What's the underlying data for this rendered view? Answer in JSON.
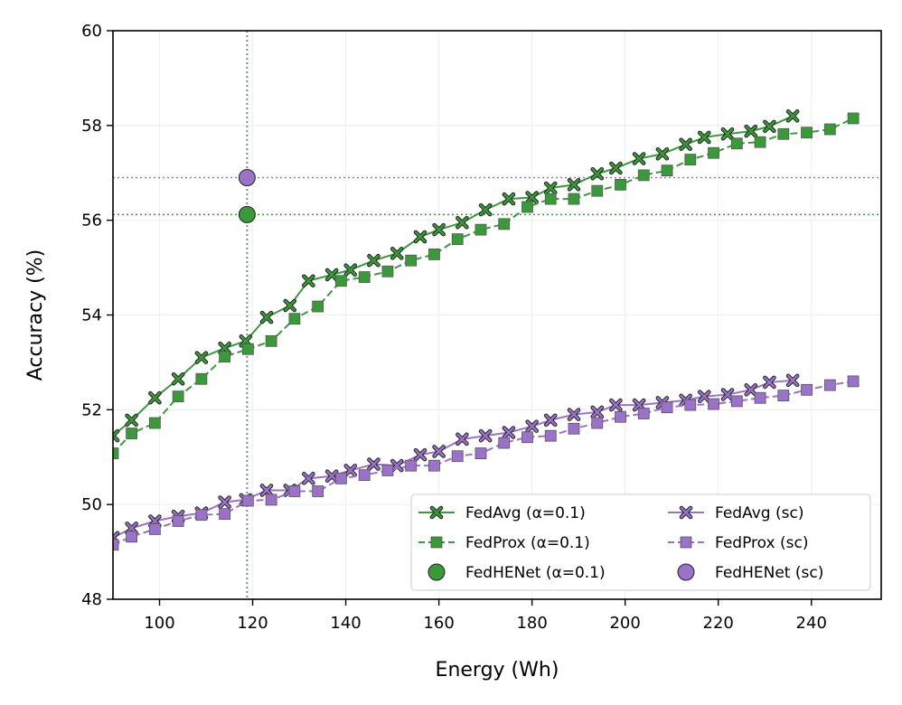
{
  "colors": {
    "green": "#3a9a3a",
    "green_fill": "#2e8b2e",
    "purple": "#9a72c8",
    "purple_fill": "#9a72c8",
    "grid": "#eeeeee",
    "ref_line": "#7a8a99"
  },
  "chart_data": {
    "type": "line",
    "title": "",
    "xlabel": "Energy (Wh)",
    "ylabel": "Accuracy (%)",
    "xlim": [
      90,
      255
    ],
    "ylim": [
      48,
      60
    ],
    "xticks": [
      100,
      120,
      140,
      160,
      180,
      200,
      220,
      240
    ],
    "yticks": [
      48,
      50,
      52,
      54,
      56,
      58,
      60
    ],
    "grid": true,
    "legend_position": "lower-right",
    "reference_lines": {
      "vertical_x": 118.8,
      "horizontal_y": [
        {
          "y": 56.9,
          "series": "FedHENet (sc)"
        },
        {
          "y": 56.12,
          "series": "FedHENet (α=0.1)"
        }
      ]
    },
    "series": [
      {
        "name": "FedAvg (α=0.1)",
        "color": "green",
        "marker": "x",
        "linestyle": "solid",
        "x": [
          90,
          94,
          99,
          104,
          109,
          114,
          118.5,
          123,
          128,
          132,
          137,
          141,
          146,
          151,
          156,
          160,
          165,
          170,
          175,
          180,
          184,
          189,
          194,
          198,
          203,
          208,
          213,
          217,
          222,
          227,
          231,
          236
        ],
        "y": [
          51.45,
          51.78,
          52.25,
          52.65,
          53.1,
          53.3,
          53.45,
          53.95,
          54.2,
          54.72,
          54.85,
          54.95,
          55.15,
          55.3,
          55.65,
          55.8,
          55.95,
          56.22,
          56.45,
          56.48,
          56.68,
          56.75,
          56.98,
          57.1,
          57.3,
          57.4,
          57.6,
          57.75,
          57.82,
          57.88,
          57.98,
          58.2
        ]
      },
      {
        "name": "FedProx (α=0.1)",
        "color": "green",
        "marker": "s",
        "linestyle": "dashed",
        "x": [
          90,
          94,
          99,
          104,
          109,
          114,
          119,
          124,
          129,
          134,
          139,
          144,
          149,
          154,
          159,
          164,
          169,
          174,
          179,
          184,
          189,
          194,
          199,
          204,
          209,
          214,
          219,
          224,
          229,
          234,
          239,
          244,
          249
        ],
        "y": [
          51.08,
          51.5,
          51.72,
          52.28,
          52.65,
          53.12,
          53.28,
          53.45,
          53.92,
          54.18,
          54.72,
          54.8,
          54.92,
          55.15,
          55.28,
          55.6,
          55.8,
          55.92,
          56.28,
          56.45,
          56.45,
          56.62,
          56.75,
          56.95,
          57.05,
          57.28,
          57.42,
          57.62,
          57.65,
          57.82,
          57.85,
          57.92,
          58.15
        ]
      },
      {
        "name": "FedAvg (sc)",
        "color": "purple",
        "marker": "x",
        "linestyle": "solid",
        "x": [
          90,
          94,
          99,
          104,
          109,
          114,
          118.5,
          123,
          128,
          132,
          137,
          141,
          146,
          151,
          156,
          160,
          165,
          170,
          175,
          180,
          184,
          189,
          194,
          198,
          203,
          208,
          213,
          217,
          222,
          227,
          231,
          236
        ],
        "y": [
          49.3,
          49.5,
          49.65,
          49.75,
          49.82,
          50.05,
          50.1,
          50.3,
          50.3,
          50.55,
          50.6,
          50.72,
          50.85,
          50.82,
          51.05,
          51.12,
          51.38,
          51.45,
          51.52,
          51.65,
          51.78,
          51.9,
          51.95,
          52.1,
          52.1,
          52.15,
          52.2,
          52.28,
          52.32,
          52.42,
          52.58,
          52.62
        ]
      },
      {
        "name": "FedProx (sc)",
        "color": "purple",
        "marker": "s",
        "linestyle": "dashed",
        "x": [
          90,
          94,
          99,
          104,
          109,
          114,
          119,
          124,
          129,
          134,
          139,
          144,
          149,
          154,
          159,
          164,
          169,
          174,
          179,
          184,
          189,
          194,
          199,
          204,
          209,
          214,
          219,
          224,
          229,
          234,
          239,
          244,
          249
        ],
        "y": [
          49.15,
          49.32,
          49.48,
          49.65,
          49.78,
          49.8,
          50.08,
          50.1,
          50.28,
          50.28,
          50.55,
          50.62,
          50.72,
          50.82,
          50.82,
          51.02,
          51.08,
          51.3,
          51.42,
          51.45,
          51.6,
          51.72,
          51.85,
          51.92,
          52.05,
          52.1,
          52.12,
          52.18,
          52.25,
          52.3,
          52.42,
          52.52,
          52.6
        ]
      },
      {
        "name": "FedHENet (α=0.1)",
        "color": "green",
        "marker": "o",
        "linestyle": "none",
        "x": [
          118.8
        ],
        "y": [
          56.12
        ]
      },
      {
        "name": "FedHENet (sc)",
        "color": "purple",
        "marker": "o",
        "linestyle": "none",
        "x": [
          118.8
        ],
        "y": [
          56.9
        ]
      }
    ],
    "legend": [
      {
        "label": "FedAvg (α=0.1)",
        "series": "FedAvg (α=0.1)"
      },
      {
        "label": "FedAvg (sc)",
        "series": "FedAvg (sc)"
      },
      {
        "label": "FedProx (α=0.1)",
        "series": "FedProx (α=0.1)"
      },
      {
        "label": "FedProx (sc)",
        "series": "FedProx (sc)"
      },
      {
        "label": "FedHENet (α=0.1)",
        "series": "FedHENet (α=0.1)"
      },
      {
        "label": "FedHENet (sc)",
        "series": "FedHENet (sc)"
      }
    ]
  }
}
